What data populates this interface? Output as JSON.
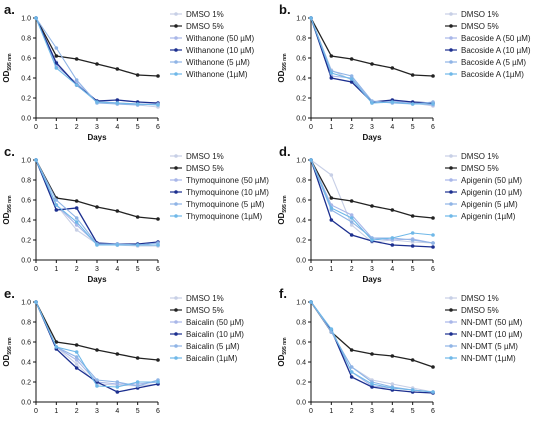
{
  "figure": {
    "panel_letters": [
      "a.",
      "b.",
      "c.",
      "d.",
      "e.",
      "f."
    ]
  },
  "chart_data": [
    {
      "type": "line",
      "panel": "a.",
      "xlabel": "Days",
      "ylabel_main": "OD",
      "ylabel_sub": "595 nm",
      "x": [
        0,
        1,
        2,
        3,
        4,
        5,
        6
      ],
      "xlim": [
        0,
        6
      ],
      "ylim": [
        0,
        1.0
      ],
      "xticks": [
        "0",
        "1",
        "2",
        "3",
        "4",
        "5",
        "6"
      ],
      "yticks": [
        "0.0",
        "0.2",
        "0.4",
        "0.6",
        "0.8",
        "1.0"
      ],
      "legend_position": "right",
      "series": [
        {
          "name": "DMSO 1%",
          "color": "#c7cfe6",
          "values": [
            1.0,
            0.56,
            0.33,
            0.16,
            0.14,
            0.13,
            0.11
          ]
        },
        {
          "name": "DMSO 5%",
          "color": "#222222",
          "values": [
            1.0,
            0.62,
            0.59,
            0.54,
            0.49,
            0.43,
            0.42
          ]
        },
        {
          "name": "Withanone (50 µM)",
          "color": "#a8b6e8",
          "values": [
            1.0,
            0.52,
            0.35,
            0.17,
            0.15,
            0.14,
            0.14
          ]
        },
        {
          "name": "Withanone (10 µM)",
          "color": "#1c2f8f",
          "values": [
            1.0,
            0.55,
            0.33,
            0.17,
            0.18,
            0.16,
            0.15
          ]
        },
        {
          "name": "Withanone (5 µM)",
          "color": "#8fb4e6",
          "values": [
            1.0,
            0.7,
            0.38,
            0.15,
            0.14,
            0.13,
            0.14
          ]
        },
        {
          "name": "Withanone (1µM)",
          "color": "#6fb8e8",
          "values": [
            1.0,
            0.5,
            0.33,
            0.16,
            0.15,
            0.14,
            0.13
          ]
        }
      ]
    },
    {
      "type": "line",
      "panel": "b.",
      "xlabel": "Days",
      "ylabel_main": "OD",
      "ylabel_sub": "595 nm",
      "x": [
        0,
        1,
        2,
        3,
        4,
        5,
        6
      ],
      "xlim": [
        0,
        6
      ],
      "ylim": [
        0,
        1.0
      ],
      "xticks": [
        "0",
        "1",
        "2",
        "3",
        "4",
        "5",
        "6"
      ],
      "yticks": [
        "0.0",
        "0.2",
        "0.4",
        "0.6",
        "0.8",
        "1.0"
      ],
      "legend_position": "right",
      "series": [
        {
          "name": "DMSO 1%",
          "color": "#c7cfe6",
          "values": [
            1.0,
            0.48,
            0.38,
            0.15,
            0.16,
            0.15,
            0.12
          ]
        },
        {
          "name": "DMSO 5%",
          "color": "#222222",
          "values": [
            1.0,
            0.62,
            0.59,
            0.54,
            0.5,
            0.43,
            0.42
          ]
        },
        {
          "name": "Bacoside A (50 µM)",
          "color": "#a8b6e8",
          "values": [
            1.0,
            0.42,
            0.4,
            0.16,
            0.17,
            0.15,
            0.13
          ]
        },
        {
          "name": "Bacoside A (10 µM)",
          "color": "#1c2f8f",
          "values": [
            1.0,
            0.4,
            0.36,
            0.16,
            0.18,
            0.16,
            0.15
          ]
        },
        {
          "name": "Bacoside A (5 µM)",
          "color": "#8fb4e6",
          "values": [
            1.0,
            0.47,
            0.42,
            0.17,
            0.15,
            0.14,
            0.16
          ]
        },
        {
          "name": "Bacoside A (1µM)",
          "color": "#6fb8e8",
          "values": [
            1.0,
            0.45,
            0.39,
            0.15,
            0.16,
            0.14,
            0.14
          ]
        }
      ]
    },
    {
      "type": "line",
      "panel": "c.",
      "xlabel": "Days",
      "ylabel_main": "OD",
      "ylabel_sub": "595 nm",
      "x": [
        0,
        1,
        2,
        3,
        4,
        5,
        6
      ],
      "xlim": [
        0,
        6
      ],
      "ylim": [
        0,
        1.0
      ],
      "xticks": [
        "0",
        "1",
        "2",
        "3",
        "4",
        "5",
        "6"
      ],
      "yticks": [
        "0.0",
        "0.2",
        "0.4",
        "0.6",
        "0.8",
        "1.0"
      ],
      "legend_position": "right",
      "series": [
        {
          "name": "DMSO 1%",
          "color": "#c7cfe6",
          "values": [
            1.0,
            0.55,
            0.3,
            0.16,
            0.15,
            0.14,
            0.14
          ]
        },
        {
          "name": "DMSO 5%",
          "color": "#222222",
          "values": [
            1.0,
            0.62,
            0.59,
            0.53,
            0.49,
            0.43,
            0.41
          ]
        },
        {
          "name": "Thymoquinone (50 µM)",
          "color": "#a8b6e8",
          "values": [
            1.0,
            0.55,
            0.35,
            0.16,
            0.15,
            0.15,
            0.15
          ]
        },
        {
          "name": "Thymoquinone (10 µM)",
          "color": "#1c2f8f",
          "values": [
            1.0,
            0.5,
            0.52,
            0.17,
            0.16,
            0.16,
            0.18
          ]
        },
        {
          "name": "Thymoquinone (5 µM)",
          "color": "#8fb4e6",
          "values": [
            1.0,
            0.6,
            0.42,
            0.16,
            0.16,
            0.15,
            0.17
          ]
        },
        {
          "name": "Thymoquinone (1µM)",
          "color": "#6fb8e8",
          "values": [
            1.0,
            0.55,
            0.38,
            0.15,
            0.15,
            0.15,
            0.15
          ]
        }
      ]
    },
    {
      "type": "line",
      "panel": "d.",
      "xlabel": "Days",
      "ylabel_main": "OD",
      "ylabel_sub": "595 nm",
      "x": [
        0,
        1,
        2,
        3,
        4,
        5,
        6
      ],
      "xlim": [
        0,
        6
      ],
      "ylim": [
        0,
        1.0
      ],
      "xticks": [
        "0",
        "1",
        "2",
        "3",
        "4",
        "5",
        "6"
      ],
      "yticks": [
        "0.0",
        "0.2",
        "0.4",
        "0.6",
        "0.8",
        "1.0"
      ],
      "legend_position": "right",
      "series": [
        {
          "name": "DMSO 1%",
          "color": "#c7cfe6",
          "values": [
            1.0,
            0.85,
            0.35,
            0.18,
            0.2,
            0.18,
            0.17
          ]
        },
        {
          "name": "DMSO 5%",
          "color": "#222222",
          "values": [
            1.0,
            0.62,
            0.59,
            0.54,
            0.5,
            0.44,
            0.42
          ]
        },
        {
          "name": "Apigenin (50 µM)",
          "color": "#a8b6e8",
          "values": [
            1.0,
            0.55,
            0.45,
            0.22,
            0.2,
            0.21,
            0.17
          ]
        },
        {
          "name": "Apigenin (10 µM)",
          "color": "#1c2f8f",
          "values": [
            1.0,
            0.4,
            0.25,
            0.19,
            0.15,
            0.14,
            0.13
          ]
        },
        {
          "name": "Apigenin (5 µM)",
          "color": "#8fb4e6",
          "values": [
            1.0,
            0.5,
            0.38,
            0.22,
            0.22,
            0.2,
            0.17
          ]
        },
        {
          "name": "Apigenin (1µM)",
          "color": "#6fb8e8",
          "values": [
            1.0,
            0.52,
            0.42,
            0.2,
            0.22,
            0.27,
            0.25
          ]
        }
      ]
    },
    {
      "type": "line",
      "panel": "e.",
      "xlabel": "Days",
      "ylabel_main": "OD",
      "ylabel_sub": "595 nm",
      "x": [
        0,
        1,
        2,
        3,
        4,
        5,
        6
      ],
      "xlim": [
        0,
        6
      ],
      "ylim": [
        0,
        1.0
      ],
      "xticks": [
        "0",
        "1",
        "2",
        "3",
        "4",
        "5",
        "6"
      ],
      "yticks": [
        "0.0",
        "0.2",
        "0.4",
        "0.6",
        "0.8",
        "1.0"
      ],
      "legend_position": "right",
      "series": [
        {
          "name": "DMSO 1%",
          "color": "#c7cfe6",
          "values": [
            1.0,
            0.55,
            0.38,
            0.18,
            0.17,
            0.16,
            0.18
          ]
        },
        {
          "name": "DMSO 5%",
          "color": "#222222",
          "values": [
            1.0,
            0.6,
            0.57,
            0.52,
            0.48,
            0.44,
            0.42
          ]
        },
        {
          "name": "Baicalin (50 µM)",
          "color": "#a8b6e8",
          "values": [
            1.0,
            0.55,
            0.42,
            0.2,
            0.18,
            0.18,
            0.2
          ]
        },
        {
          "name": "Baicalin (10 µM)",
          "color": "#1c2f8f",
          "values": [
            1.0,
            0.53,
            0.34,
            0.2,
            0.1,
            0.14,
            0.18
          ]
        },
        {
          "name": "Baicalin (5 µM)",
          "color": "#8fb4e6",
          "values": [
            1.0,
            0.55,
            0.45,
            0.22,
            0.2,
            0.16,
            0.22
          ]
        },
        {
          "name": "Baicalin (1µM)",
          "color": "#6fb8e8",
          "values": [
            1.0,
            0.55,
            0.5,
            0.16,
            0.15,
            0.2,
            0.2
          ]
        }
      ]
    },
    {
      "type": "line",
      "panel": "f.",
      "xlabel": "Days",
      "ylabel_main": "OD",
      "ylabel_sub": "595 nm",
      "x": [
        0,
        1,
        2,
        3,
        4,
        5,
        6
      ],
      "xlim": [
        0,
        6
      ],
      "ylim": [
        0,
        1.0
      ],
      "xticks": [
        "0",
        "1",
        "2",
        "3",
        "4",
        "5",
        "6"
      ],
      "yticks": [
        "0.0",
        "0.2",
        "0.4",
        "0.6",
        "0.8",
        "1.0"
      ],
      "legend_position": "right",
      "series": [
        {
          "name": "DMSO 1%",
          "color": "#c7cfe6",
          "values": [
            1.0,
            0.7,
            0.35,
            0.22,
            0.18,
            0.14,
            0.1
          ]
        },
        {
          "name": "DMSO 5%",
          "color": "#222222",
          "values": [
            1.0,
            0.7,
            0.52,
            0.48,
            0.46,
            0.42,
            0.35
          ]
        },
        {
          "name": "NN-DMT (50 µM)",
          "color": "#a8b6e8",
          "values": [
            1.0,
            0.72,
            0.3,
            0.16,
            0.14,
            0.12,
            0.1
          ]
        },
        {
          "name": "NN-DMT (10 µM)",
          "color": "#1c2f8f",
          "values": [
            1.0,
            0.72,
            0.25,
            0.15,
            0.12,
            0.1,
            0.09
          ]
        },
        {
          "name": "NN-DMT (5 µM)",
          "color": "#8fb4e6",
          "values": [
            1.0,
            0.7,
            0.35,
            0.2,
            0.15,
            0.12,
            0.1
          ]
        },
        {
          "name": "NN-DMT (1µM)",
          "color": "#6fb8e8",
          "values": [
            1.0,
            0.73,
            0.3,
            0.18,
            0.14,
            0.12,
            0.1
          ]
        }
      ]
    }
  ]
}
